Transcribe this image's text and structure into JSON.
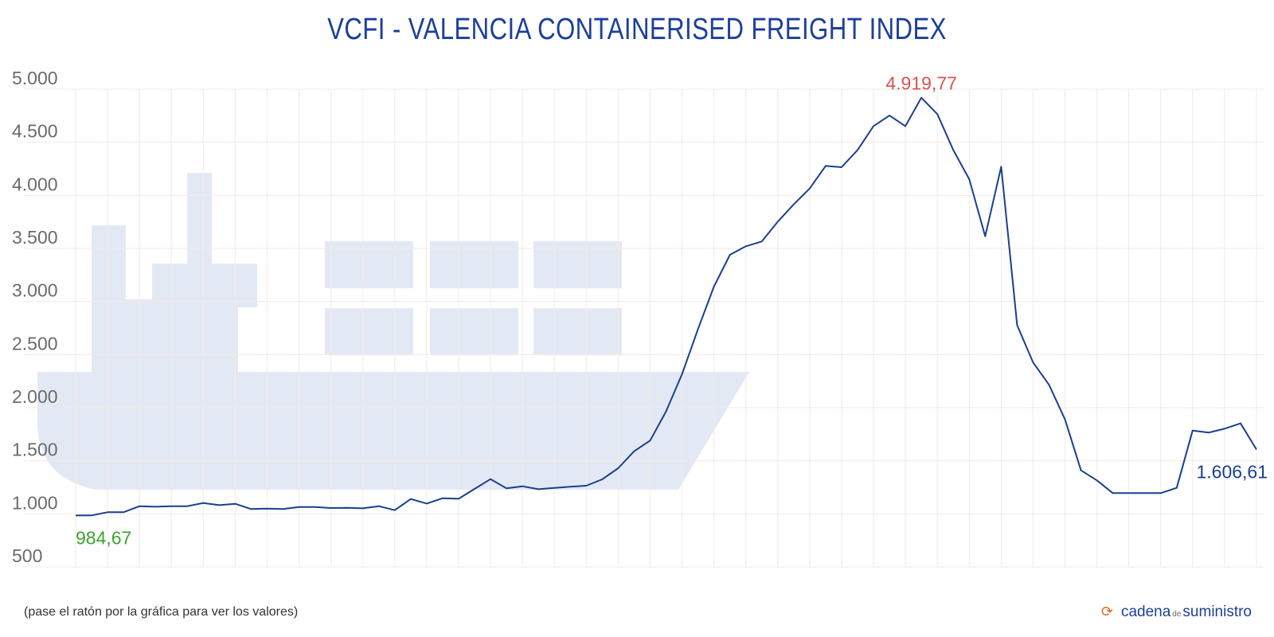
{
  "title": "VCFI - VALENCIA CONTAINERISED FREIGHT INDEX",
  "hint": "(pase el ratón por la gráfica para ver los valores)",
  "logo": {
    "part1": "cadena",
    "part2": "de",
    "part3": "suministro",
    "icon": "refresh-arrows-icon"
  },
  "colors": {
    "line": "#1a3f8f",
    "title": "#1c3f9c",
    "max_label": "#d9534f",
    "min_label": "#3aa52e",
    "last_label": "#1a3f8f",
    "ship": "#e3e9f4",
    "grid": "#f5e9e4"
  },
  "chart_data": {
    "type": "line",
    "title": "VCFI - VALENCIA CONTAINERISED FREIGHT INDEX",
    "ylim": [
      500,
      5000
    ],
    "yticks": [
      "500",
      "1.000",
      "1.500",
      "2.000",
      "2.500",
      "3.000",
      "3.500",
      "4.000",
      "4.500",
      "5.000"
    ],
    "ytick_values": [
      500,
      1000,
      1500,
      2000,
      2500,
      3000,
      3500,
      4000,
      4500,
      5000
    ],
    "grid": true,
    "background": "ship-silhouette",
    "values": [
      984.67,
      985,
      1015,
      1015,
      1072,
      1067,
      1072,
      1072,
      1102,
      1082,
      1095,
      1045,
      1050,
      1045,
      1065,
      1065,
      1055,
      1057,
      1052,
      1072,
      1035,
      1140,
      1097,
      1147,
      1142,
      1235,
      1327,
      1240,
      1260,
      1232,
      1245,
      1255,
      1265,
      1325,
      1430,
      1590,
      1690,
      1965,
      2315,
      2740,
      3140,
      3440,
      3520,
      3565,
      3752,
      3915,
      4065,
      4277,
      4265,
      4427,
      4652,
      4752,
      4652,
      4919.77,
      4765,
      4427,
      4152,
      3615,
      4270,
      2777,
      2427,
      2215,
      1890,
      1410,
      1315,
      1195,
      1195,
      1195,
      1195,
      1245,
      1785,
      1765,
      1802,
      1852,
      1606.61
    ],
    "annotations": {
      "min": "984,67",
      "max": "4.919,77",
      "last": "1.606,61"
    }
  }
}
